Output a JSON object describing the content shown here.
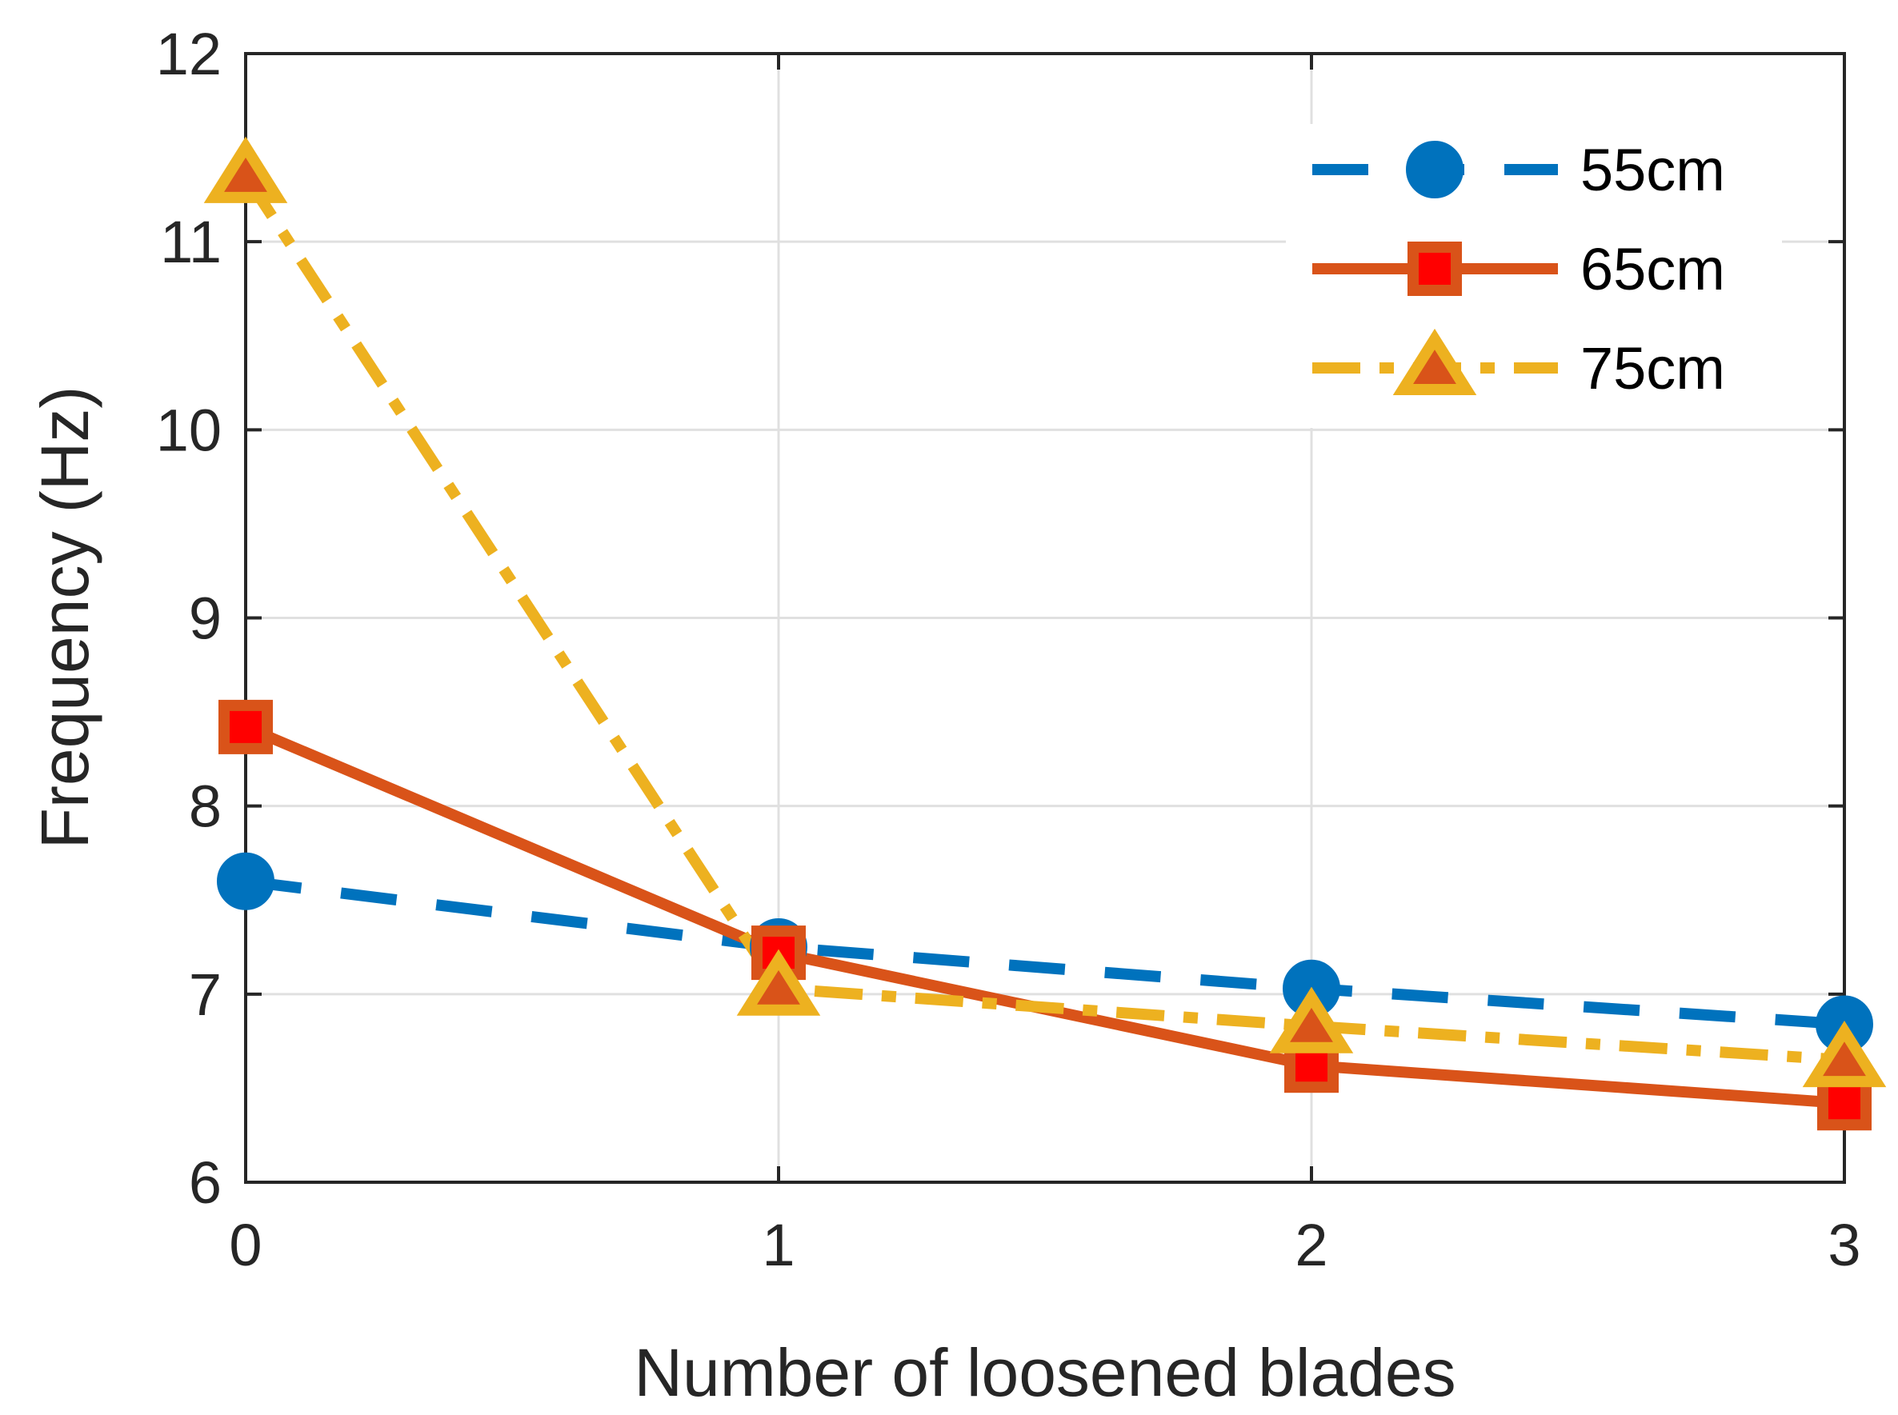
{
  "chart_data": {
    "type": "line",
    "title": "",
    "xlabel": "Number of loosened blades",
    "ylabel": "Frequency (Hz)",
    "x": [
      0,
      1,
      2,
      3
    ],
    "xlim": [
      0,
      3
    ],
    "ylim": [
      6,
      12
    ],
    "xticks": [
      "0",
      "1",
      "2",
      "3"
    ],
    "yticks": [
      "6",
      "7",
      "8",
      "9",
      "10",
      "11",
      "12"
    ],
    "grid": true,
    "legend_position": "top-right",
    "series": [
      {
        "name": "55cm",
        "values": [
          7.6,
          7.25,
          7.03,
          6.84
        ],
        "color": "#0072BD",
        "line": "dashed",
        "marker": "circle",
        "marker_inner_color": "#0072BD"
      },
      {
        "name": "65cm",
        "values": [
          8.42,
          7.22,
          6.62,
          6.42
        ],
        "color": "#D95319",
        "line": "solid",
        "marker": "square",
        "marker_inner_color": "#FF0000"
      },
      {
        "name": "75cm",
        "values": [
          11.35,
          7.03,
          6.83,
          6.65
        ],
        "color": "#EDB120",
        "line": "dash-dot",
        "marker": "triangle",
        "marker_inner_color": "#D95319"
      }
    ]
  }
}
